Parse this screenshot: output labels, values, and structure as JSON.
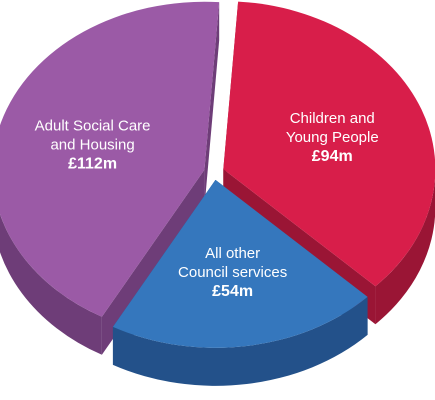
{
  "chart_data": {
    "type": "pie",
    "style": "3d-exploded",
    "slices": [
      {
        "label_lines": [
          "Adult Social Care",
          "and Housing"
        ],
        "value_label": "£112m",
        "value": 112,
        "color": "#9b5aa6",
        "side_color": "#6e3d78"
      },
      {
        "label_lines": [
          "Children and",
          "Young People"
        ],
        "value_label": "£94m",
        "value": 94,
        "color": "#d81e4a",
        "side_color": "#9a1535"
      },
      {
        "label_lines": [
          "All other",
          "Council services"
        ],
        "value_label": "£54m",
        "value": 54,
        "color": "#3577bd",
        "side_color": "#23518a"
      }
    ]
  }
}
